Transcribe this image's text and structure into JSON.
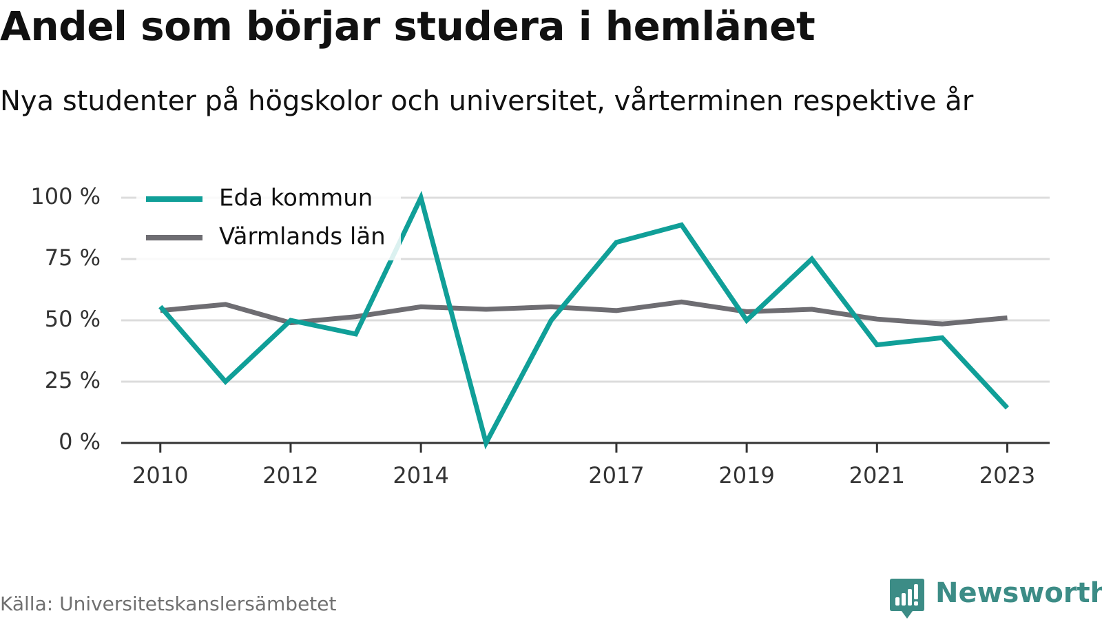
{
  "chart_data": {
    "type": "line",
    "title": "Andel som börjar studera i hemlänet",
    "subtitle": "Nya studenter på högskolor och universitet, vårterminen respektive år",
    "x": [
      2010,
      2011,
      2012,
      2013,
      2014,
      2015,
      2016,
      2017,
      2018,
      2019,
      2020,
      2021,
      2022,
      2023
    ],
    "x_tick_labels": [
      "2010",
      "2012",
      "2014",
      "2017",
      "2019",
      "2021",
      "2023"
    ],
    "x_tick_values": [
      2010,
      2012,
      2014,
      2017,
      2019,
      2021,
      2023
    ],
    "xlim": [
      2009.4,
      2023.65
    ],
    "ylim": [
      0,
      100
    ],
    "y_ticks": [
      0,
      25,
      50,
      75,
      100
    ],
    "y_tick_labels": [
      "0 %",
      "25 %",
      "50 %",
      "75 %",
      "100 %"
    ],
    "grid": true,
    "legend_position": "top-left",
    "series": [
      {
        "name": "Eda kommun",
        "color": "#109f98",
        "values": [
          55.6,
          25,
          50,
          44.4,
          100,
          0,
          50,
          81.8,
          88.9,
          50,
          75,
          40,
          42.9,
          14.3
        ]
      },
      {
        "name": "Värmlands län",
        "color": "#6e6d72",
        "values": [
          54,
          56.5,
          49,
          51.5,
          55.5,
          54.5,
          55.5,
          54,
          57.5,
          53.5,
          54.5,
          50.5,
          48.5,
          51
        ]
      }
    ]
  },
  "source": "Källa: Universitetskanslersämbetet",
  "brand": {
    "name": "Newsworthy",
    "color": "#3c8c86",
    "icon": "newsworthy-logo-icon"
  }
}
